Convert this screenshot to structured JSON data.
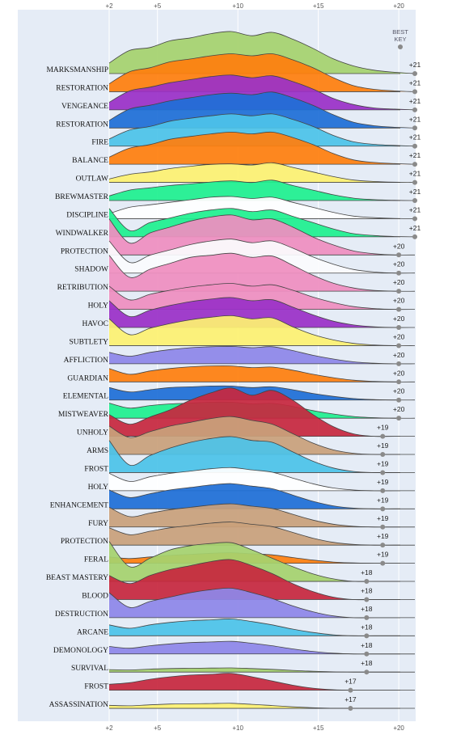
{
  "chart_data": {
    "type": "area",
    "subtype": "ridgeline",
    "x_ticks": [
      {
        "value": 2,
        "label": "+2"
      },
      {
        "value": 5,
        "label": "+5"
      },
      {
        "value": 10,
        "label": "+10"
      },
      {
        "value": 15,
        "label": "+15"
      },
      {
        "value": 20,
        "label": "+20"
      }
    ],
    "xlim": [
      2,
      21
    ],
    "legend": {
      "label_line1": "BEST",
      "label_line2": "KEY",
      "placement": "top-right"
    },
    "background_color": "#e5ecf6",
    "grid": true,
    "series": [
      {
        "name": "MARKSMANSHIP",
        "color": "#a6d26e",
        "best_key": 21,
        "best_key_label": "+21",
        "amplitude": 1.0,
        "density": [
          0.25,
          0.55,
          0.62,
          0.78,
          0.85,
          0.95,
          1.0,
          0.9,
          0.98,
          0.82,
          0.6,
          0.35,
          0.18,
          0.08,
          0.03,
          0.0
        ]
      },
      {
        "name": "RESTORATION",
        "color": "#ff7f0e",
        "best_key": 21,
        "best_key_label": "+21",
        "amplitude": 0.95,
        "density": [
          0.2,
          0.5,
          0.6,
          0.75,
          0.82,
          0.9,
          0.95,
          0.9,
          0.95,
          0.8,
          0.6,
          0.35,
          0.15,
          0.06,
          0.02,
          0.0
        ]
      },
      {
        "name": "VENGEANCE",
        "color": "#9b30c7",
        "best_key": 21,
        "best_key_label": "+21",
        "amplitude": 0.9,
        "density": [
          0.2,
          0.5,
          0.6,
          0.72,
          0.8,
          0.88,
          0.92,
          0.85,
          0.9,
          0.75,
          0.55,
          0.3,
          0.14,
          0.05,
          0.02,
          0.0
        ]
      },
      {
        "name": "RESTORATION",
        "color": "#1f6fd6",
        "best_key": 21,
        "best_key_label": "+21",
        "amplitude": 0.9,
        "density": [
          0.2,
          0.5,
          0.6,
          0.72,
          0.8,
          0.88,
          0.92,
          0.88,
          0.95,
          0.8,
          0.6,
          0.35,
          0.15,
          0.06,
          0.02,
          0.0
        ]
      },
      {
        "name": "FIRE",
        "color": "#4cc3e8",
        "best_key": 21,
        "best_key_label": "+21",
        "amplitude": 0.85,
        "density": [
          0.2,
          0.45,
          0.55,
          0.7,
          0.78,
          0.85,
          0.9,
          0.85,
          0.9,
          0.75,
          0.55,
          0.3,
          0.12,
          0.05,
          0.02,
          0.0
        ]
      },
      {
        "name": "BALANCE",
        "color": "#ff7f0e",
        "best_key": 21,
        "best_key_label": "+21",
        "amplitude": 0.85,
        "density": [
          0.2,
          0.45,
          0.55,
          0.7,
          0.78,
          0.85,
          0.9,
          0.85,
          0.9,
          0.75,
          0.55,
          0.3,
          0.12,
          0.05,
          0.02,
          0.0
        ]
      },
      {
        "name": "OUTLAW",
        "color": "#fdf171",
        "best_key": 21,
        "best_key_label": "+21",
        "amplitude": 0.55,
        "density": [
          0.15,
          0.35,
          0.45,
          0.6,
          0.7,
          0.78,
          0.8,
          0.75,
          0.85,
          0.65,
          0.45,
          0.25,
          0.1,
          0.04,
          0.01,
          0.0
        ]
      },
      {
        "name": "BREWMASTER",
        "color": "#1ff08f",
        "best_key": 21,
        "best_key_label": "+21",
        "amplitude": 0.55,
        "density": [
          0.2,
          0.45,
          0.55,
          0.65,
          0.72,
          0.8,
          0.85,
          0.78,
          0.88,
          0.65,
          0.45,
          0.25,
          0.1,
          0.04,
          0.01,
          0.0
        ]
      },
      {
        "name": "DISCIPLINE",
        "color": "#ffffff",
        "best_key": 21,
        "best_key_label": "+21",
        "amplitude": 0.6,
        "density": [
          0.2,
          0.45,
          0.55,
          0.65,
          0.75,
          0.85,
          0.88,
          0.8,
          0.85,
          0.65,
          0.45,
          0.25,
          0.1,
          0.04,
          0.01,
          0.0
        ]
      },
      {
        "name": "WINDWALKER",
        "color": "#1ff08f",
        "best_key": 21,
        "best_key_label": "+21",
        "amplitude": 0.75,
        "density": [
          0.9,
          0.2,
          0.45,
          0.6,
          0.75,
          0.85,
          0.9,
          0.8,
          0.85,
          0.65,
          0.45,
          0.25,
          0.1,
          0.04,
          0.01,
          0.0
        ]
      },
      {
        "name": "PROTECTION",
        "color": "#ef8ebf",
        "best_key": 20,
        "best_key_label": "+20",
        "amplitude": 0.95,
        "density": [
          0.9,
          0.3,
          0.55,
          0.7,
          0.85,
          0.95,
          1.0,
          0.88,
          0.9,
          0.7,
          0.45,
          0.25,
          0.1,
          0.03,
          0.0,
          0.0
        ]
      },
      {
        "name": "SHADOW",
        "color": "#fbfbfd",
        "best_key": 20,
        "best_key_label": "+20",
        "amplitude": 0.85,
        "density": [
          0.9,
          0.3,
          0.5,
          0.65,
          0.8,
          0.9,
          0.95,
          0.85,
          0.9,
          0.7,
          0.45,
          0.25,
          0.1,
          0.03,
          0.0,
          0.0
        ]
      },
      {
        "name": "RETRIBUTION",
        "color": "#ef8ebf",
        "best_key": 20,
        "best_key_label": "+20",
        "amplitude": 0.95,
        "density": [
          0.9,
          0.35,
          0.55,
          0.7,
          0.85,
          0.9,
          0.95,
          0.85,
          0.88,
          0.65,
          0.4,
          0.2,
          0.08,
          0.02,
          0.0,
          0.0
        ]
      },
      {
        "name": "HOLY",
        "color": "#ef8ebf",
        "best_key": 20,
        "best_key_label": "+20",
        "amplitude": 0.65,
        "density": [
          0.85,
          0.35,
          0.55,
          0.7,
          0.82,
          0.9,
          0.95,
          0.85,
          0.9,
          0.7,
          0.45,
          0.25,
          0.1,
          0.03,
          0.0,
          0.0
        ]
      },
      {
        "name": "HAVOC",
        "color": "#9b30c7",
        "best_key": 20,
        "best_key_label": "+20",
        "amplitude": 0.75,
        "density": [
          0.85,
          0.35,
          0.55,
          0.7,
          0.82,
          0.9,
          0.95,
          0.85,
          0.88,
          0.65,
          0.4,
          0.2,
          0.08,
          0.02,
          0.0,
          0.0
        ]
      },
      {
        "name": "SUBTLETY",
        "color": "#fdf171",
        "best_key": 20,
        "best_key_label": "+20",
        "amplitude": 0.75,
        "density": [
          0.85,
          0.35,
          0.55,
          0.7,
          0.82,
          0.9,
          0.95,
          0.85,
          0.88,
          0.6,
          0.35,
          0.18,
          0.07,
          0.02,
          0.0,
          0.0
        ]
      },
      {
        "name": "AFFLICTION",
        "color": "#8e87e8",
        "best_key": 20,
        "best_key_label": "+20",
        "amplitude": 0.45,
        "density": [
          0.6,
          0.4,
          0.6,
          0.75,
          0.85,
          0.9,
          0.92,
          0.85,
          0.9,
          0.7,
          0.45,
          0.25,
          0.1,
          0.03,
          0.0,
          0.0
        ]
      },
      {
        "name": "GUARDIAN",
        "color": "#ff7f0e",
        "best_key": 20,
        "best_key_label": "+20",
        "amplitude": 0.4,
        "density": [
          0.8,
          0.45,
          0.65,
          0.8,
          0.9,
          0.95,
          0.95,
          0.85,
          0.88,
          0.7,
          0.45,
          0.25,
          0.1,
          0.03,
          0.0,
          0.0
        ]
      },
      {
        "name": "ELEMENTAL",
        "color": "#1f6fd6",
        "best_key": 20,
        "best_key_label": "+20",
        "amplitude": 0.35,
        "density": [
          0.85,
          0.55,
          0.7,
          0.85,
          0.9,
          0.95,
          0.95,
          0.85,
          0.9,
          0.7,
          0.45,
          0.25,
          0.1,
          0.03,
          0.0,
          0.0
        ]
      },
      {
        "name": "MISTWEAVER",
        "color": "#1ff08f",
        "best_key": 20,
        "best_key_label": "+20",
        "amplitude": 0.4,
        "density": [
          0.9,
          0.6,
          0.75,
          0.85,
          0.9,
          0.95,
          0.95,
          0.85,
          0.88,
          0.7,
          0.45,
          0.25,
          0.1,
          0.03,
          0.0,
          0.0
        ]
      },
      {
        "name": "UNHOLY",
        "color": "#c7283e",
        "best_key": 19,
        "best_key_label": "+19",
        "amplitude": 1.15,
        "density": [
          0.45,
          0.25,
          0.4,
          0.55,
          0.75,
          0.9,
          1.0,
          0.85,
          0.95,
          0.75,
          0.45,
          0.2,
          0.05,
          0.0,
          0.0,
          0.0
        ]
      },
      {
        "name": "ARMS",
        "color": "#c9a07b",
        "best_key": 19,
        "best_key_label": "+19",
        "amplitude": 0.9,
        "density": [
          0.75,
          0.45,
          0.6,
          0.75,
          0.85,
          0.95,
          1.0,
          0.9,
          0.8,
          0.55,
          0.3,
          0.12,
          0.03,
          0.0,
          0.0,
          0.0
        ]
      },
      {
        "name": "FROST",
        "color": "#4cc3e8",
        "best_key": 19,
        "best_key_label": "+19",
        "amplitude": 0.9,
        "density": [
          0.85,
          0.2,
          0.45,
          0.65,
          0.8,
          0.9,
          0.95,
          0.85,
          0.8,
          0.55,
          0.3,
          0.12,
          0.03,
          0.0,
          0.0,
          0.0
        ]
      },
      {
        "name": "HOLY",
        "color": "#ffffff",
        "best_key": 19,
        "best_key_label": "+19",
        "amplitude": 0.55,
        "density": [
          0.75,
          0.4,
          0.6,
          0.75,
          0.85,
          0.95,
          1.0,
          0.9,
          0.8,
          0.55,
          0.3,
          0.12,
          0.03,
          0.0,
          0.0,
          0.0
        ]
      },
      {
        "name": "ENHANCEMENT",
        "color": "#1f6fd6",
        "best_key": 19,
        "best_key_label": "+19",
        "amplitude": 0.6,
        "density": [
          0.75,
          0.45,
          0.6,
          0.75,
          0.85,
          0.95,
          1.0,
          0.9,
          0.8,
          0.55,
          0.3,
          0.12,
          0.03,
          0.0,
          0.0,
          0.0
        ]
      },
      {
        "name": "FURY",
        "color": "#c9a07b",
        "best_key": 19,
        "best_key_label": "+19",
        "amplitude": 0.55,
        "density": [
          0.85,
          0.45,
          0.6,
          0.75,
          0.85,
          0.95,
          1.0,
          0.9,
          0.8,
          0.55,
          0.3,
          0.12,
          0.03,
          0.0,
          0.0,
          0.0
        ]
      },
      {
        "name": "PROTECTION",
        "color": "#c9a07b",
        "best_key": 19,
        "best_key_label": "+19",
        "amplitude": 0.55,
        "density": [
          0.75,
          0.45,
          0.6,
          0.75,
          0.85,
          0.95,
          1.0,
          0.9,
          0.8,
          0.55,
          0.3,
          0.12,
          0.03,
          0.0,
          0.0,
          0.0
        ]
      },
      {
        "name": "FERAL",
        "color": "#ff7f0e",
        "best_key": 19,
        "best_key_label": "+19",
        "amplitude": 0.25,
        "density": [
          0.6,
          0.45,
          0.6,
          0.75,
          0.85,
          0.95,
          1.0,
          0.9,
          0.8,
          0.55,
          0.3,
          0.12,
          0.03,
          0.0,
          0.0,
          0.0
        ]
      },
      {
        "name": "BEAST MASTERY",
        "color": "#a6d26e",
        "best_key": 18,
        "best_key_label": "+18",
        "amplitude": 1.0,
        "density": [
          0.95,
          0.35,
          0.55,
          0.75,
          0.85,
          0.9,
          0.92,
          0.75,
          0.55,
          0.35,
          0.18,
          0.06,
          0.0,
          0.0,
          0.0,
          0.0
        ]
      },
      {
        "name": "BLOOD",
        "color": "#c7283e",
        "best_key": 18,
        "best_key_label": "+18",
        "amplitude": 0.95,
        "density": [
          0.6,
          0.4,
          0.6,
          0.75,
          0.85,
          0.95,
          1.0,
          0.85,
          0.65,
          0.4,
          0.2,
          0.06,
          0.0,
          0.0,
          0.0,
          0.0
        ]
      },
      {
        "name": "DESTRUCTION",
        "color": "#8e87e8",
        "best_key": 18,
        "best_key_label": "+18",
        "amplitude": 0.7,
        "density": [
          0.85,
          0.35,
          0.55,
          0.7,
          0.85,
          0.95,
          1.0,
          0.85,
          0.65,
          0.4,
          0.2,
          0.06,
          0.0,
          0.0,
          0.0,
          0.0
        ]
      },
      {
        "name": "ARCANE",
        "color": "#4cc3e8",
        "best_key": 18,
        "best_key_label": "+18",
        "amplitude": 0.4,
        "density": [
          0.65,
          0.45,
          0.65,
          0.8,
          0.9,
          0.95,
          1.0,
          0.85,
          0.65,
          0.4,
          0.2,
          0.06,
          0.0,
          0.0,
          0.0,
          0.0
        ]
      },
      {
        "name": "DEMONOLOGY",
        "color": "#8e87e8",
        "best_key": 18,
        "best_key_label": "+18",
        "amplitude": 0.3,
        "density": [
          0.6,
          0.45,
          0.65,
          0.8,
          0.9,
          0.95,
          1.0,
          0.85,
          0.65,
          0.4,
          0.2,
          0.06,
          0.0,
          0.0,
          0.0,
          0.0
        ]
      },
      {
        "name": "SURVIVAL",
        "color": "#a6d26e",
        "best_key": 18,
        "best_key_label": "+18",
        "amplitude": 0.1,
        "density": [
          0.6,
          0.5,
          0.7,
          0.85,
          0.9,
          0.95,
          1.0,
          0.85,
          0.65,
          0.4,
          0.2,
          0.06,
          0.0,
          0.0,
          0.0,
          0.0
        ]
      },
      {
        "name": "FROST",
        "color": "#c7283e",
        "best_key": 17,
        "best_key_label": "+17",
        "amplitude": 0.4,
        "density": [
          0.35,
          0.45,
          0.65,
          0.8,
          0.9,
          0.95,
          1.0,
          0.8,
          0.55,
          0.3,
          0.12,
          0.03,
          0.0,
          0.0,
          0.0,
          0.0
        ]
      },
      {
        "name": "ASSASSINATION",
        "color": "#fdf171",
        "best_key": 17,
        "best_key_label": "+17",
        "amplitude": 0.12,
        "density": [
          0.6,
          0.5,
          0.7,
          0.85,
          0.9,
          0.95,
          1.0,
          0.8,
          0.55,
          0.3,
          0.12,
          0.03,
          0.0,
          0.0,
          0.0,
          0.0
        ]
      }
    ]
  }
}
